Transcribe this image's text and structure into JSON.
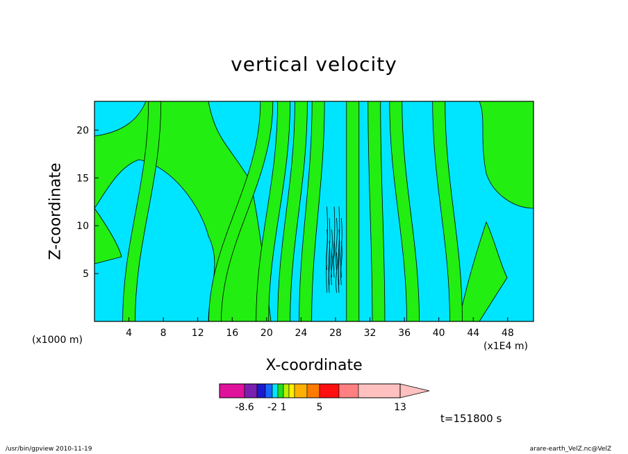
{
  "chart_data": {
    "type": "contour",
    "title": "vertical velocity",
    "xlabel": "X-coordinate",
    "ylabel": "Z-coordinate",
    "x_scale_note": "(x1000 m)",
    "x_unit_note": "(x1E4 m)",
    "x_ticks": [
      4,
      8,
      12,
      16,
      20,
      24,
      28,
      32,
      36,
      40,
      44,
      48
    ],
    "y_ticks": [
      5,
      10,
      15,
      20
    ],
    "xlim": [
      0,
      51
    ],
    "ylim": [
      0,
      23
    ],
    "colorbar": {
      "tick_labels": [
        {
          "value": -8.6,
          "label": "-8.6"
        },
        {
          "value": -2,
          "label": "-2"
        },
        {
          "value": 1,
          "label": "1"
        },
        {
          "value": 5,
          "label": "5"
        },
        {
          "value": 13,
          "label": "13"
        }
      ],
      "colors": [
        "#e0129c",
        "#7a20b0",
        "#1a1acc",
        "#1a66ff",
        "#00e5ff",
        "#22dd22",
        "#b8f000",
        "#ffee00",
        "#ffb000",
        "#ff7a00",
        "#ff1010",
        "#ff8080",
        "#ffc0c0"
      ]
    },
    "fill_colors": {
      "background": "#00e5ff",
      "green": "#22ee11"
    },
    "green_bands": [
      {
        "x_top": 7,
        "x_bottom": 4,
        "band": "left-upper"
      },
      {
        "x_top": 20,
        "x_bottom": 14,
        "band": "left-1"
      },
      {
        "x_top": 22,
        "x_bottom": 19.5,
        "band": "left-2"
      },
      {
        "x_top": 24,
        "x_bottom": 22,
        "band": "left-3"
      },
      {
        "x_top": 26,
        "x_bottom": 24.5,
        "band": "left-4"
      },
      {
        "x_top": 30,
        "x_bottom": 30,
        "band": "right-1"
      },
      {
        "x_top": 32.5,
        "x_bottom": 33,
        "band": "right-2"
      },
      {
        "x_top": 35,
        "x_bottom": 37,
        "band": "right-3"
      },
      {
        "x_top": 40,
        "x_bottom": 42,
        "band": "right-4"
      }
    ]
  },
  "time_label": "t=151800 s",
  "footer_left": "/usr/bin/gpview  2010-11-19",
  "footer_right": "arare-earth_VelZ.nc@VelZ"
}
